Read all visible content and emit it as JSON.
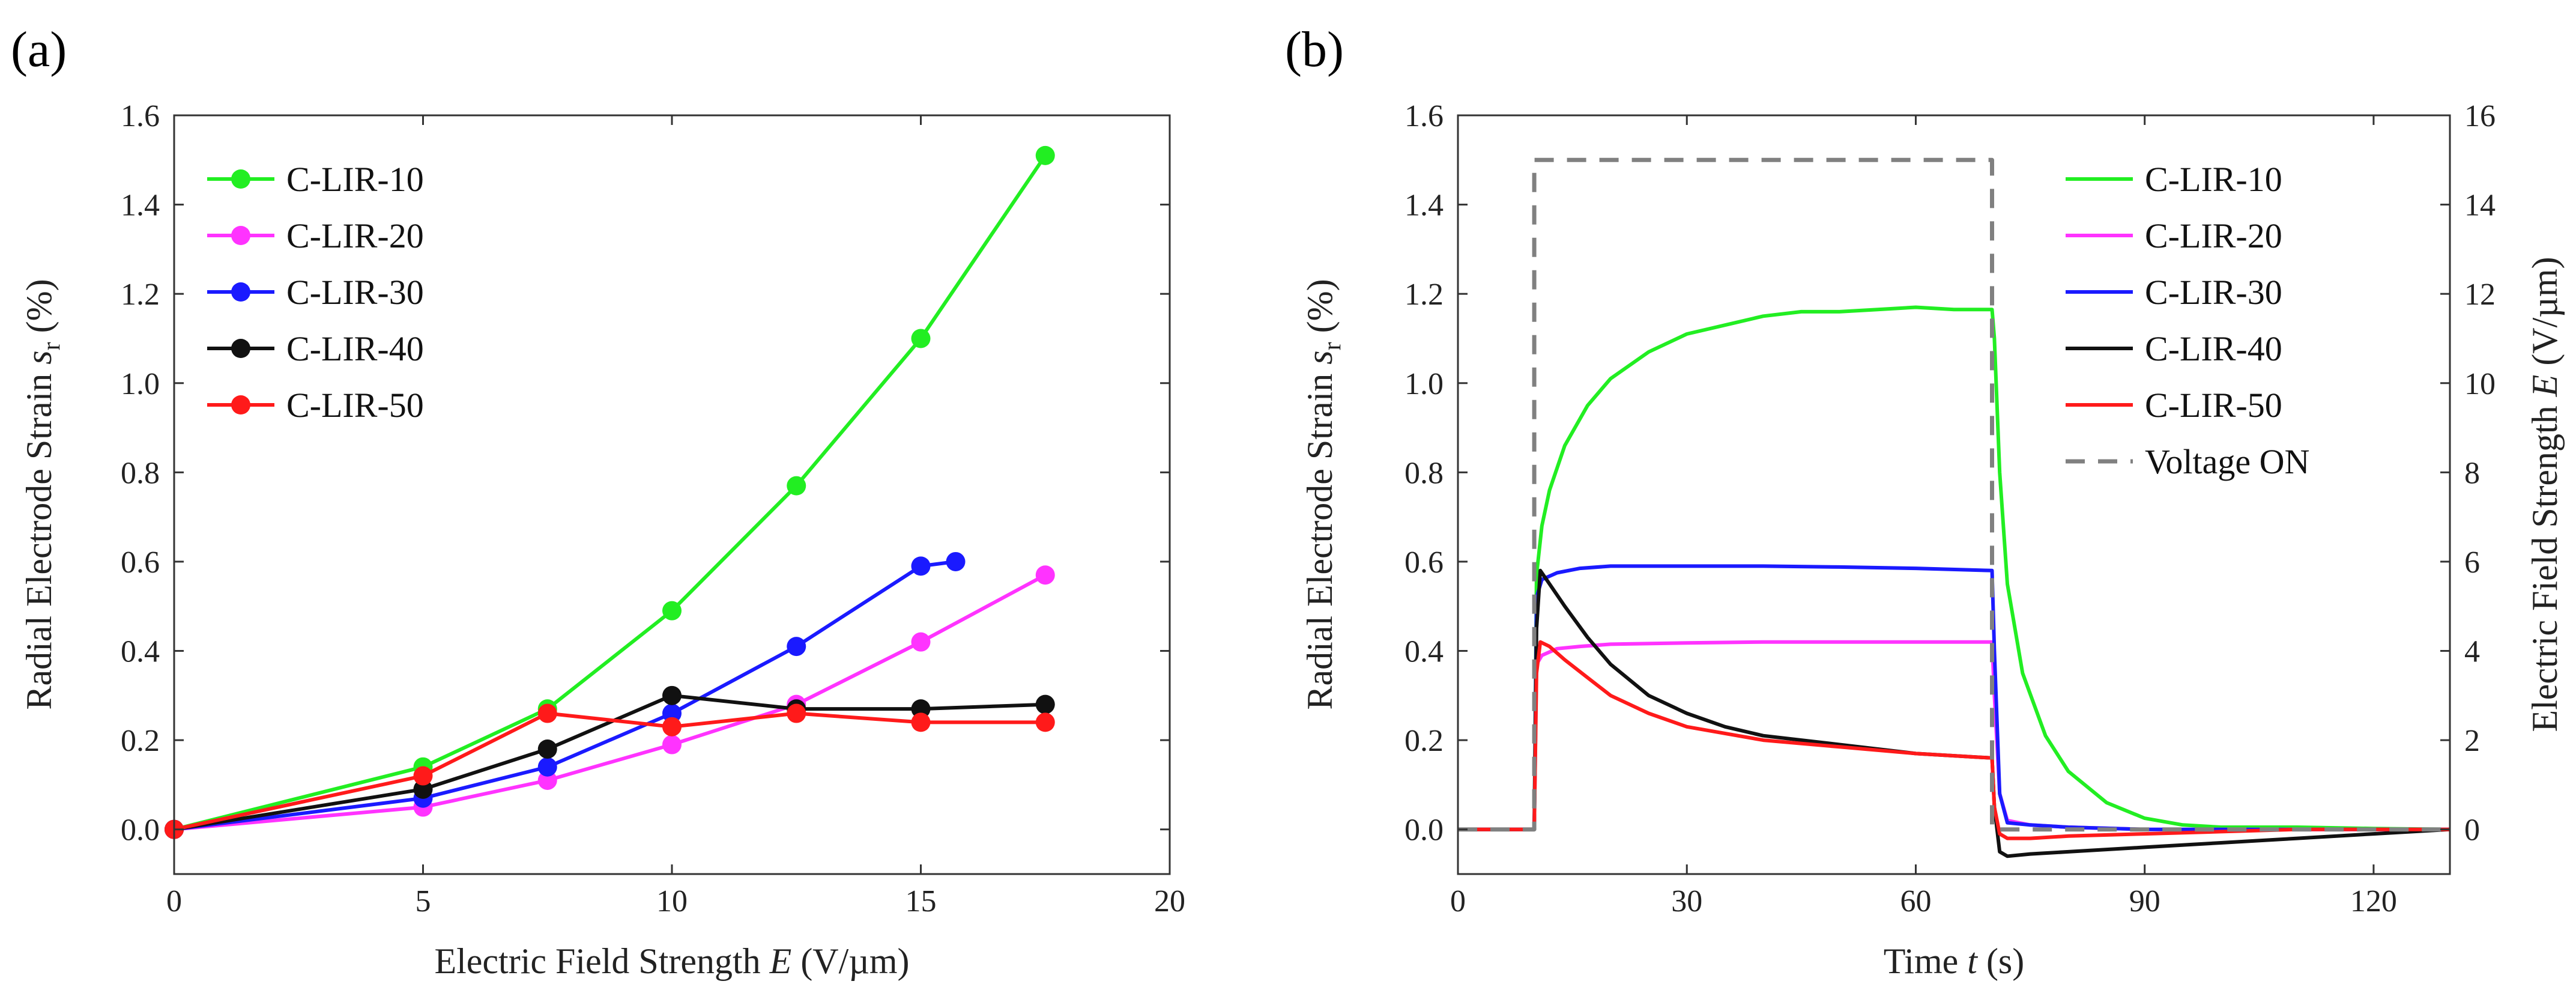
{
  "chart_data": [
    {
      "panel": "(a)",
      "type": "line",
      "xlabel": {
        "text": "Electric Field Strength ",
        "var": "E",
        "unit": " (V/µm)"
      },
      "ylabel": {
        "text": "Radial Electrode Strain ",
        "var": "s",
        "sub": "r",
        "unit": " (%)"
      },
      "xlim": [
        0,
        20
      ],
      "ylim": [
        -0.1,
        1.6
      ],
      "xticks": [
        "0",
        "5",
        "10",
        "15",
        "20"
      ],
      "xtick_values": [
        0,
        5,
        10,
        15,
        20
      ],
      "yticks": [
        "0.0",
        "0.2",
        "0.4",
        "0.6",
        "0.8",
        "1.0",
        "1.2",
        "1.4",
        "1.6"
      ],
      "ytick_values": [
        0,
        0.2,
        0.4,
        0.6,
        0.8,
        1.0,
        1.2,
        1.4,
        1.6
      ],
      "legend_position": "top-left",
      "series": [
        {
          "name": "C-LIR-10",
          "color": "#22ee22",
          "x": [
            0,
            5,
            7.5,
            10,
            12.5,
            15,
            17.5
          ],
          "y": [
            0,
            0.14,
            0.27,
            0.49,
            0.77,
            1.1,
            1.51
          ]
        },
        {
          "name": "C-LIR-20",
          "color": "#ff33ff",
          "x": [
            0,
            5,
            7.5,
            10,
            12.5,
            15,
            17.5
          ],
          "y": [
            0,
            0.05,
            0.11,
            0.19,
            0.28,
            0.42,
            0.57
          ]
        },
        {
          "name": "C-LIR-30",
          "color": "#1a1aff",
          "x": [
            0,
            5,
            7.5,
            10,
            12.5,
            15,
            15.7
          ],
          "y": [
            0,
            0.07,
            0.14,
            0.26,
            0.41,
            0.59,
            0.6
          ]
        },
        {
          "name": "C-LIR-40",
          "color": "#111111",
          "x": [
            0,
            5,
            7.5,
            10,
            12.5,
            15,
            17.5
          ],
          "y": [
            0,
            0.09,
            0.18,
            0.3,
            0.27,
            0.27,
            0.28
          ]
        },
        {
          "name": "C-LIR-50",
          "color": "#ff1a1a",
          "x": [
            0,
            5,
            7.5,
            10,
            12.5,
            15,
            17.5
          ],
          "y": [
            0,
            0.12,
            0.26,
            0.23,
            0.26,
            0.24,
            0.24
          ]
        }
      ]
    },
    {
      "panel": "(b)",
      "type": "line",
      "xlabel": {
        "text": "Time ",
        "var": "t",
        "unit": " (s)"
      },
      "ylabel": {
        "text": "Radial Electrode Strain ",
        "var": "s",
        "sub": "r",
        "unit": " (%)"
      },
      "y2label": {
        "text": "Electric Field Strength ",
        "var": "E",
        "unit": " (V/µm)"
      },
      "xlim": [
        0,
        130
      ],
      "ylim": [
        -0.1,
        1.6
      ],
      "y2lim": [
        -1,
        16
      ],
      "xticks": [
        "0",
        "30",
        "60",
        "90",
        "120"
      ],
      "xtick_values": [
        0,
        30,
        60,
        90,
        120
      ],
      "yticks": [
        "0.0",
        "0.2",
        "0.4",
        "0.6",
        "0.8",
        "1.0",
        "1.2",
        "1.4",
        "1.6"
      ],
      "ytick_values": [
        0,
        0.2,
        0.4,
        0.6,
        0.8,
        1.0,
        1.2,
        1.4,
        1.6
      ],
      "y2ticks": [
        "0",
        "2",
        "4",
        "6",
        "8",
        "10",
        "12",
        "14",
        "16"
      ],
      "y2tick_values": [
        0,
        2,
        4,
        6,
        8,
        10,
        12,
        14,
        16
      ],
      "legend_position": "top-right",
      "series": [
        {
          "name": "C-LIR-10",
          "color": "#22ee22",
          "x": [
            0,
            10,
            10.3,
            11,
            12,
            14,
            17,
            20,
            25,
            30,
            35,
            40,
            45,
            50,
            55,
            60,
            65,
            70,
            70.3,
            71,
            72,
            74,
            77,
            80,
            85,
            90,
            95,
            100,
            110,
            120,
            130
          ],
          "y": [
            0,
            0,
            0.57,
            0.68,
            0.76,
            0.86,
            0.95,
            1.01,
            1.07,
            1.11,
            1.13,
            1.15,
            1.16,
            1.16,
            1.165,
            1.17,
            1.165,
            1.165,
            1.1,
            0.8,
            0.55,
            0.35,
            0.21,
            0.13,
            0.06,
            0.025,
            0.01,
            0.005,
            0.005,
            0.002,
            0
          ]
        },
        {
          "name": "C-LIR-20",
          "color": "#ff33ff",
          "x": [
            0,
            10,
            10.3,
            11,
            13,
            16,
            20,
            30,
            40,
            50,
            60,
            70,
            70.3,
            71,
            72,
            75,
            80,
            90,
            100,
            110,
            120,
            130
          ],
          "y": [
            0,
            0,
            0.37,
            0.39,
            0.405,
            0.41,
            0.415,
            0.418,
            0.42,
            0.42,
            0.42,
            0.42,
            0.3,
            0.08,
            0.02,
            0.01,
            0.005,
            0,
            0,
            0,
            0,
            0
          ]
        },
        {
          "name": "C-LIR-30",
          "color": "#1a1aff",
          "x": [
            0,
            10,
            10.3,
            11,
            13,
            16,
            20,
            30,
            40,
            50,
            60,
            70,
            70.3,
            71,
            72,
            75,
            80,
            90,
            100,
            110,
            120,
            130
          ],
          "y": [
            0,
            0,
            0.52,
            0.56,
            0.575,
            0.585,
            0.59,
            0.59,
            0.59,
            0.588,
            0.585,
            0.58,
            0.4,
            0.08,
            0.015,
            0.01,
            0.005,
            0,
            0,
            0,
            0,
            0
          ]
        },
        {
          "name": "C-LIR-40",
          "color": "#111111",
          "x": [
            0,
            10,
            10.3,
            10.8,
            12,
            14,
            17,
            20,
            25,
            30,
            35,
            40,
            50,
            60,
            70,
            70.3,
            71,
            72,
            75,
            80,
            90,
            100,
            110,
            120,
            130
          ],
          "y": [
            0,
            0,
            0.45,
            0.58,
            0.55,
            0.5,
            0.43,
            0.37,
            0.3,
            0.26,
            0.23,
            0.21,
            0.19,
            0.17,
            0.16,
            0.05,
            -0.05,
            -0.06,
            -0.055,
            -0.05,
            -0.04,
            -0.03,
            -0.02,
            -0.01,
            0
          ]
        },
        {
          "name": "C-LIR-50",
          "color": "#ff1a1a",
          "x": [
            0,
            10,
            10.3,
            10.8,
            12,
            14,
            17,
            20,
            25,
            30,
            40,
            50,
            60,
            70,
            70.3,
            71,
            72,
            75,
            80,
            90,
            100,
            110,
            120,
            130
          ],
          "y": [
            0,
            0,
            0.35,
            0.42,
            0.41,
            0.38,
            0.34,
            0.3,
            0.26,
            0.23,
            0.2,
            0.185,
            0.17,
            0.16,
            0.05,
            -0.01,
            -0.02,
            -0.02,
            -0.015,
            -0.01,
            -0.005,
            0,
            0,
            0
          ]
        },
        {
          "name": "Voltage ON",
          "color": "#808080",
          "dashed": true,
          "axis": "y2",
          "x": [
            0,
            10,
            10,
            70,
            70,
            130
          ],
          "y": [
            0,
            0,
            15,
            15,
            0,
            0
          ]
        }
      ]
    }
  ]
}
